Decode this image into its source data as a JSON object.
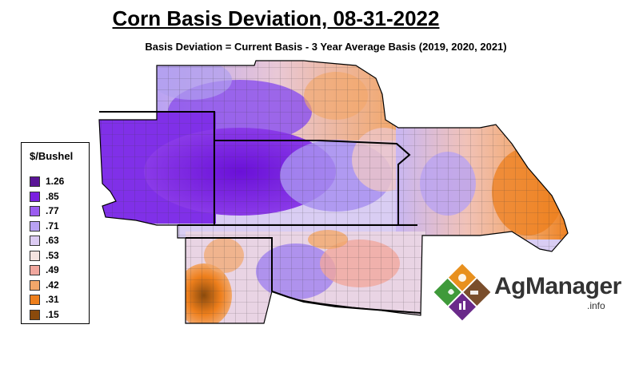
{
  "title": "Corn Basis Deviation, 08-31-2022",
  "subtitle": "Basis Deviation = Current Basis - 3 Year Average Basis (2019, 2020, 2021)",
  "legend": {
    "title": "$/Bushel",
    "items": [
      {
        "label": "1.26",
        "color": "#5a1496"
      },
      {
        "label": ".85",
        "color": "#7a1fe0"
      },
      {
        "label": ".77",
        "color": "#9b5cf0"
      },
      {
        "label": ".71",
        "color": "#b9a2f3"
      },
      {
        "label": ".63",
        "color": "#dccbf3"
      },
      {
        "label": ".53",
        "color": "#f5e4e0"
      },
      {
        "label": ".49",
        "color": "#f1a79e"
      },
      {
        "label": ".42",
        "color": "#f2a76a"
      },
      {
        "label": ".31",
        "color": "#ee7f1c"
      },
      {
        "label": ".15",
        "color": "#8a4a0c"
      }
    ]
  },
  "logo": {
    "name": "AgManager",
    "suffix": ".info",
    "colors": {
      "orange": "#e8901e",
      "green": "#3f9a3a",
      "brown": "#7a4e2c",
      "purple": "#6a2a8a"
    }
  }
}
